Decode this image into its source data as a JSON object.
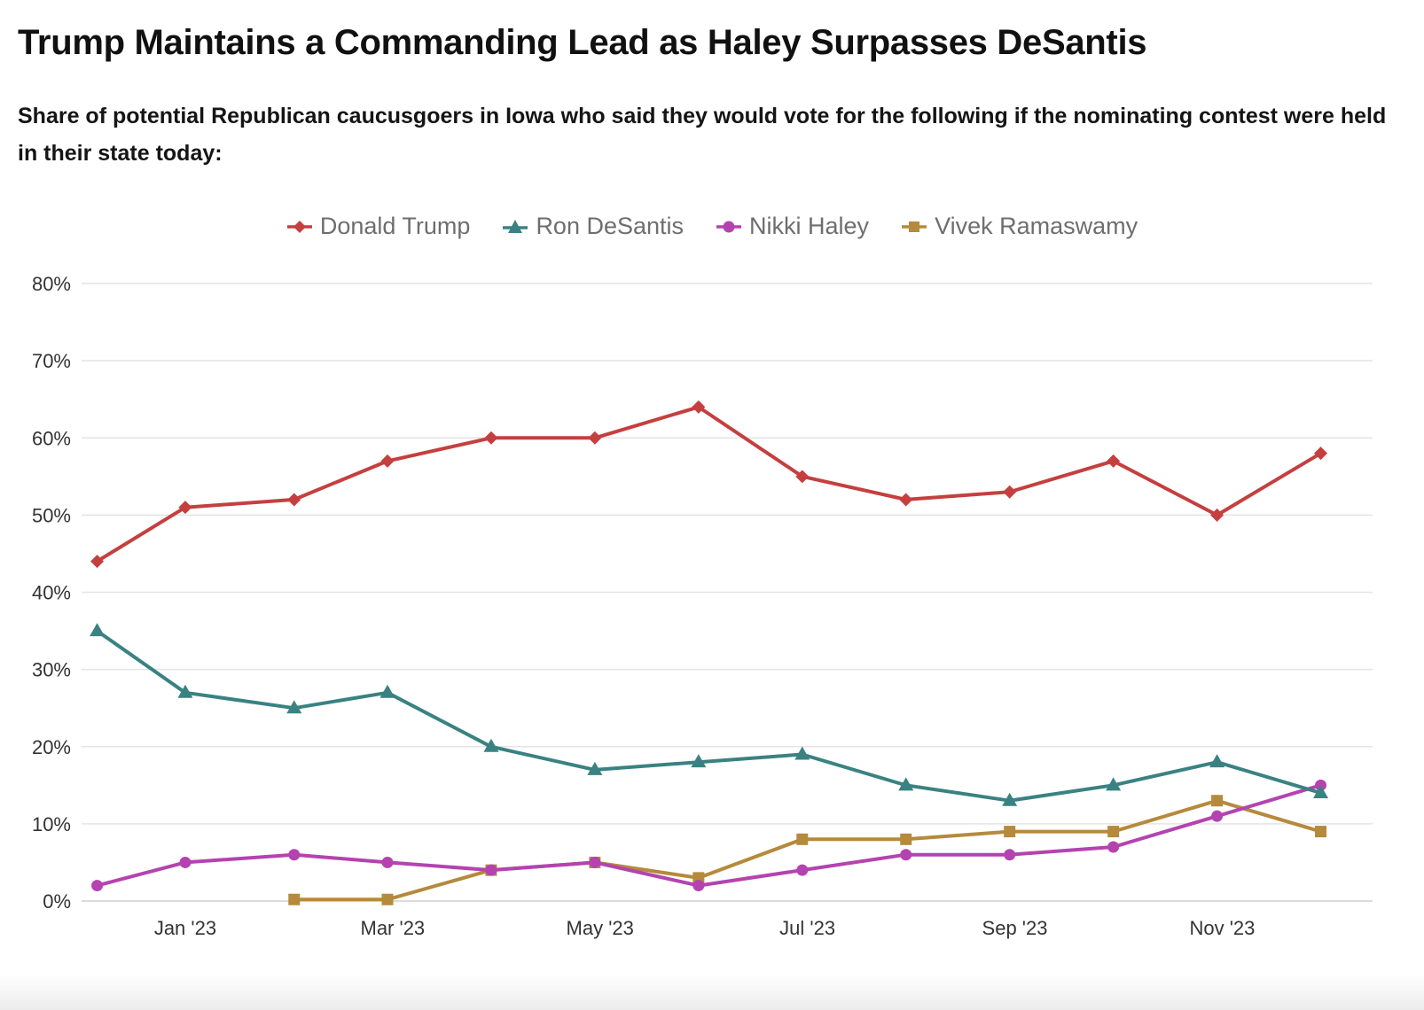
{
  "chart_data": {
    "type": "line",
    "title": "Trump Maintains a Commanding Lead as Haley Surpasses DeSantis",
    "subtitle": "Share of potential Republican caucusgoers in Iowa who said they would vote for the following if the nominating contest were held in their state today:",
    "xlabel": "",
    "ylabel": "",
    "ylim": [
      0,
      80
    ],
    "yticks": [
      {
        "value": 0,
        "label": "0%"
      },
      {
        "value": 10,
        "label": "10%"
      },
      {
        "value": 20,
        "label": "20%"
      },
      {
        "value": 30,
        "label": "30%"
      },
      {
        "value": 40,
        "label": "40%"
      },
      {
        "value": 50,
        "label": "50%"
      },
      {
        "value": 60,
        "label": "60%"
      },
      {
        "value": 70,
        "label": "70%"
      },
      {
        "value": 80,
        "label": "80%"
      }
    ],
    "xlim": [
      -1,
      11.45
    ],
    "xticks": [
      {
        "value": 0,
        "label": "Jan '23"
      },
      {
        "value": 2,
        "label": "Mar '23"
      },
      {
        "value": 4,
        "label": "May '23"
      },
      {
        "value": 6,
        "label": "Jul '23"
      },
      {
        "value": 8,
        "label": "Sep '23"
      },
      {
        "value": 10,
        "label": "Nov '23"
      }
    ],
    "grid": true,
    "legend_position": "top-center",
    "series": [
      {
        "name": "Donald Trump",
        "color": "#c53f3f",
        "marker": "diamond",
        "points": [
          [
            -0.85,
            44
          ],
          [
            0,
            51
          ],
          [
            1.05,
            52
          ],
          [
            1.95,
            57
          ],
          [
            2.95,
            60
          ],
          [
            3.95,
            60
          ],
          [
            4.95,
            64
          ],
          [
            5.95,
            55
          ],
          [
            6.95,
            52
          ],
          [
            7.95,
            53
          ],
          [
            8.95,
            57
          ],
          [
            9.95,
            50
          ],
          [
            10.95,
            58
          ]
        ]
      },
      {
        "name": "Ron DeSantis",
        "color": "#3a8282",
        "marker": "triangle",
        "points": [
          [
            -0.85,
            35
          ],
          [
            0,
            27
          ],
          [
            1.05,
            25
          ],
          [
            1.95,
            27
          ],
          [
            2.95,
            20
          ],
          [
            3.95,
            17
          ],
          [
            4.95,
            18
          ],
          [
            5.95,
            19
          ],
          [
            6.95,
            15
          ],
          [
            7.95,
            13
          ],
          [
            8.95,
            15
          ],
          [
            9.95,
            18
          ],
          [
            10.95,
            14
          ]
        ]
      },
      {
        "name": "Nikki Haley",
        "color": "#b443b0",
        "marker": "circle",
        "points": [
          [
            -0.85,
            2
          ],
          [
            0,
            5
          ],
          [
            1.05,
            6
          ],
          [
            1.95,
            5
          ],
          [
            2.95,
            4
          ],
          [
            3.95,
            5
          ],
          [
            4.95,
            2
          ],
          [
            5.95,
            4
          ],
          [
            6.95,
            6
          ],
          [
            7.95,
            6
          ],
          [
            8.95,
            7
          ],
          [
            9.95,
            11
          ],
          [
            10.95,
            15
          ]
        ]
      },
      {
        "name": "Vivek Ramaswamy",
        "color": "#b58a3c",
        "marker": "square",
        "points": [
          [
            1.05,
            0.2
          ],
          [
            1.95,
            0.2
          ],
          [
            2.95,
            4
          ],
          [
            3.95,
            5
          ],
          [
            4.95,
            3
          ],
          [
            5.95,
            8
          ],
          [
            6.95,
            8
          ],
          [
            7.95,
            9
          ],
          [
            8.95,
            9
          ],
          [
            9.95,
            13
          ],
          [
            10.95,
            9
          ]
        ]
      }
    ]
  }
}
